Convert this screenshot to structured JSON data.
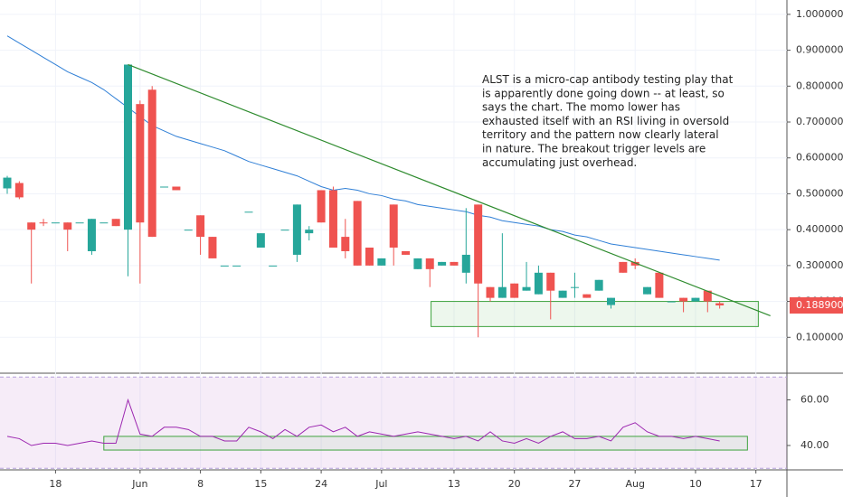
{
  "chart_data": {
    "type": "candlestick",
    "categories": [
      null,
      null,
      null,
      null,
      "18",
      null,
      null,
      null,
      null,
      null,
      null,
      "Jun",
      null,
      null,
      null,
      null,
      "8",
      null,
      null,
      null,
      null,
      "15",
      null,
      null,
      null,
      null,
      "24",
      null,
      null,
      null,
      null,
      "Jul",
      null,
      null,
      null,
      null,
      null,
      "13",
      null,
      null,
      null,
      null,
      "20",
      null,
      null,
      null,
      null,
      "27",
      null,
      null,
      null,
      null,
      "Aug",
      null,
      null,
      null,
      null,
      "10",
      null,
      null,
      null,
      null,
      "17"
    ],
    "open": [
      0.515,
      0.53,
      0.42,
      0.42,
      0.42,
      0.42,
      0.42,
      0.34,
      0.42,
      0.43,
      0.4,
      0.75,
      0.79,
      0.52,
      0.52,
      0.4,
      0.44,
      0.38,
      0.3,
      0.3,
      0.45,
      0.35,
      0.3,
      0.4,
      0.33,
      0.39,
      0.51,
      0.51,
      0.38,
      0.48,
      0.35,
      0.3,
      0.47,
      0.34,
      0.29,
      0.32,
      0.3,
      0.31,
      0.28,
      0.47,
      0.24,
      0.21,
      0.25,
      0.23,
      0.22,
      0.28,
      0.21,
      0.24,
      0.22,
      0.23,
      0.19,
      0.31,
      0.31,
      0.22,
      0.28,
      0.2,
      0.21,
      0.2,
      0.23,
      0.195,
      null,
      null,
      null
    ],
    "high": [
      0.55,
      0.535,
      0.42,
      0.43,
      0.42,
      0.42,
      0.42,
      0.43,
      0.42,
      0.43,
      0.86,
      0.76,
      0.8,
      0.52,
      0.52,
      0.4,
      0.44,
      0.38,
      0.3,
      0.3,
      0.45,
      0.39,
      0.3,
      0.4,
      0.47,
      0.41,
      0.51,
      0.52,
      0.43,
      0.48,
      0.35,
      0.32,
      0.47,
      0.34,
      0.32,
      0.32,
      0.31,
      0.31,
      0.46,
      0.47,
      0.24,
      0.39,
      0.25,
      0.31,
      0.3,
      0.28,
      0.23,
      0.28,
      0.22,
      0.26,
      0.21,
      0.31,
      0.32,
      0.24,
      0.28,
      0.2,
      0.21,
      0.21,
      0.23,
      0.2,
      null,
      null,
      null
    ],
    "low": [
      0.5,
      0.485,
      0.25,
      0.41,
      0.42,
      0.34,
      0.42,
      0.33,
      0.42,
      0.41,
      0.27,
      0.25,
      0.38,
      0.52,
      0.51,
      0.4,
      0.33,
      0.32,
      0.3,
      0.3,
      0.45,
      0.35,
      0.3,
      0.4,
      0.31,
      0.37,
      0.42,
      0.35,
      0.32,
      0.3,
      0.3,
      0.3,
      0.3,
      0.33,
      0.29,
      0.24,
      0.3,
      0.3,
      0.25,
      0.1,
      0.2,
      0.21,
      0.21,
      0.23,
      0.22,
      0.15,
      0.21,
      0.21,
      0.21,
      0.23,
      0.18,
      0.28,
      0.29,
      0.22,
      0.21,
      0.2,
      0.17,
      0.2,
      0.17,
      0.18,
      null,
      null,
      null
    ],
    "close": [
      0.545,
      0.49,
      0.4,
      0.418,
      0.42,
      0.4,
      0.42,
      0.43,
      0.42,
      0.41,
      0.86,
      0.42,
      0.38,
      0.52,
      0.51,
      0.4,
      0.38,
      0.32,
      0.3,
      0.3,
      0.45,
      0.39,
      0.3,
      0.4,
      0.47,
      0.4,
      0.42,
      0.35,
      0.34,
      0.3,
      0.3,
      0.32,
      0.35,
      0.33,
      0.32,
      0.29,
      0.31,
      0.3,
      0.33,
      0.25,
      0.21,
      0.24,
      0.21,
      0.24,
      0.28,
      0.23,
      0.23,
      0.24,
      0.21,
      0.26,
      0.21,
      0.28,
      0.3,
      0.24,
      0.21,
      0.2,
      0.2,
      0.21,
      0.2,
      0.1889,
      null,
      null,
      null
    ],
    "up_color": "#26a69a",
    "down_color": "#ef5350",
    "ma": {
      "color": "#2f7fd6",
      "values": [
        0.94,
        0.92,
        0.9,
        0.88,
        0.86,
        0.84,
        0.825,
        0.81,
        0.79,
        0.765,
        0.74,
        0.715,
        0.69,
        0.675,
        0.66,
        0.65,
        0.64,
        0.63,
        0.62,
        0.605,
        0.59,
        0.58,
        0.57,
        0.56,
        0.55,
        0.535,
        0.52,
        0.51,
        0.515,
        0.51,
        0.5,
        0.495,
        0.485,
        0.48,
        0.47,
        0.465,
        0.46,
        0.455,
        0.45,
        0.44,
        0.435,
        0.425,
        0.42,
        0.415,
        0.41,
        0.4,
        0.395,
        0.385,
        0.38,
        0.37,
        0.36,
        0.355,
        0.35,
        0.345,
        0.34,
        0.335,
        0.33,
        0.325,
        0.32,
        0.315,
        null,
        null,
        null
      ]
    },
    "trendline": {
      "color": "#2e8b2e",
      "points": [
        [
          10,
          0.86
        ],
        [
          63.2,
          0.16
        ]
      ]
    },
    "box": {
      "color": "#3fa33f",
      "x": [
        35.1,
        62.2
      ],
      "y": [
        0.13,
        0.2
      ]
    },
    "ylim": [
      0.0,
      1.04
    ],
    "yticks": [
      {
        "value": 0.1,
        "label": "0.100000"
      },
      {
        "value": 0.2,
        "label": "0.200000"
      },
      {
        "value": 0.3,
        "label": "0.300000"
      },
      {
        "value": 0.4,
        "label": "0.400000"
      },
      {
        "value": 0.5,
        "label": "0.500000"
      },
      {
        "value": 0.6,
        "label": "0.600000"
      },
      {
        "value": 0.7,
        "label": "0.700000"
      },
      {
        "value": 0.8,
        "label": "0.800000"
      },
      {
        "value": 0.9,
        "label": "0.900000"
      },
      {
        "value": 1.0,
        "label": "1.000000"
      }
    ],
    "last_price": {
      "value": 0.1889,
      "label": "0.188900",
      "color": "#ef5350"
    },
    "annotation": [
      "ALST is a micro-cap antibody testing play that",
      "is apparently done going down -- at least, so",
      "says the chart. The momo lower has",
      "exhausted itself with an RSI living in oversold",
      "territory and the pattern now clearly lateral",
      "in nature. The breakout trigger levels are",
      "accumulating just overhead."
    ],
    "rsi": {
      "color": "#9c27b0",
      "values": [
        44,
        43,
        40,
        41,
        41,
        40,
        41,
        42,
        41,
        41,
        60,
        45,
        44,
        48,
        48,
        47,
        44,
        44,
        42,
        42,
        48,
        46,
        43,
        47,
        44,
        48,
        49,
        46,
        48,
        44,
        46,
        45,
        44,
        45,
        46,
        45,
        44,
        43,
        44,
        42,
        46,
        42,
        41,
        43,
        41,
        44,
        46,
        43,
        43,
        44,
        42,
        48,
        50,
        46,
        44,
        44,
        43,
        44,
        43,
        42,
        null,
        null,
        null
      ],
      "band": [
        30,
        70
      ],
      "ylim": [
        29.3,
        71.7
      ],
      "yticks": [
        {
          "value": 40,
          "label": "40.00"
        },
        {
          "value": 60,
          "label": "60.00"
        }
      ],
      "box": {
        "color": "#3fa33f",
        "x": [
          8.0,
          61.3
        ],
        "y": [
          38,
          44
        ]
      }
    }
  }
}
